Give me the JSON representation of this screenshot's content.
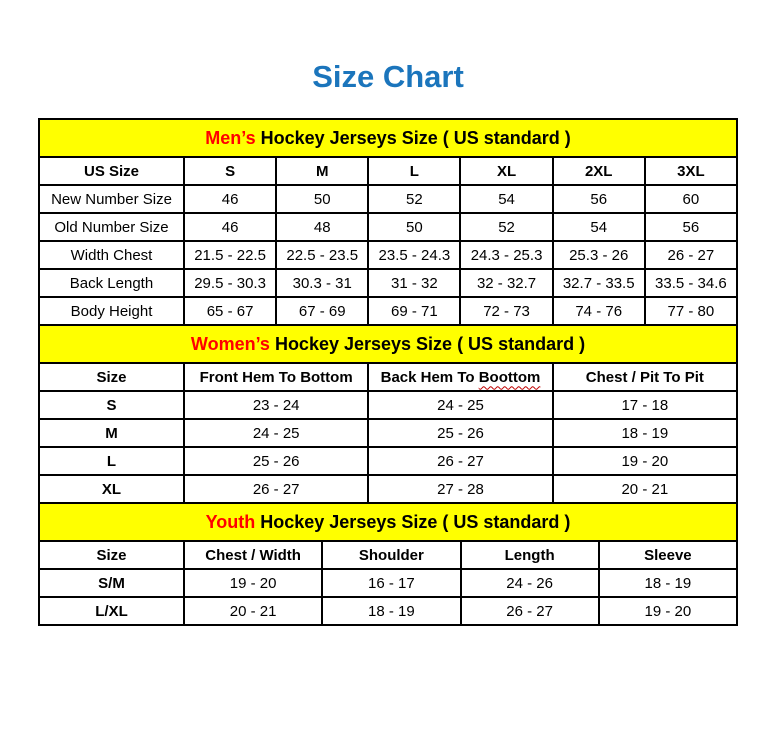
{
  "page": {
    "title": "Size Chart"
  },
  "colors": {
    "title_blue": "#1B75BC",
    "band_yellow": "#FFFF00",
    "accent_red": "#FF0000",
    "squiggle_red": "#C00000",
    "border_black": "#000000",
    "background": "#FFFFFF"
  },
  "chart_data": [
    {
      "type": "table",
      "id": "men",
      "title": "Men’s Hockey Jerseys Size ( US standard )",
      "band_highlight": "Men’s",
      "band_rest": " Hockey Jerseys Size ( US standard )",
      "columns": [
        "US Size",
        "S",
        "M",
        "L",
        "XL",
        "2XL",
        "3XL"
      ],
      "rows": [
        [
          "New Number Size",
          "46",
          "50",
          "52",
          "54",
          "56",
          "60"
        ],
        [
          "Old Number Size",
          "46",
          "48",
          "50",
          "52",
          "54",
          "56"
        ],
        [
          "Width Chest",
          "21.5 - 22.5",
          "22.5 - 23.5",
          "23.5 - 24.3",
          "24.3 - 25.3",
          "25.3 - 26",
          "26 - 27"
        ],
        [
          "Back Length",
          "29.5 - 30.3",
          "30.3 - 31",
          "31 - 32",
          "32 - 32.7",
          "32.7 - 33.5",
          "33.5 - 34.6"
        ],
        [
          "Body Height",
          "65 - 67",
          "67 - 69",
          "69 - 71",
          "72 - 73",
          "74 - 76",
          "77 - 80"
        ]
      ]
    },
    {
      "type": "table",
      "id": "women",
      "title": "Women’s Hockey Jerseys Size ( US standard )",
      "band_highlight": "Women’s",
      "band_rest": " Hockey Jerseys Size ( US standard )",
      "columns": [
        "Size",
        "Front Hem To Bottom",
        "Back Hem To Boottom",
        "Chest / Pit To Pit"
      ],
      "misspelled_header": {
        "prefix": "Back Hem To ",
        "word": "Boottom"
      },
      "rows": [
        [
          "S",
          "23 - 24",
          "24 - 25",
          "17 - 18"
        ],
        [
          "M",
          "24 - 25",
          "25 - 26",
          "18 - 19"
        ],
        [
          "L",
          "25 - 26",
          "26 - 27",
          "19 - 20"
        ],
        [
          "XL",
          "26 - 27",
          "27 - 28",
          "20 - 21"
        ]
      ]
    },
    {
      "type": "table",
      "id": "youth",
      "title": "Youth Hockey Jerseys Size ( US standard )",
      "band_highlight": "Youth",
      "band_rest": " Hockey Jerseys Size ( US standard )",
      "columns": [
        "Size",
        "Chest / Width",
        "Shoulder",
        "Length",
        "Sleeve"
      ],
      "rows": [
        [
          "S/M",
          "19 - 20",
          "16 - 17",
          "24 - 26",
          "18 - 19"
        ],
        [
          "L/XL",
          "20 - 21",
          "18 - 19",
          "26 - 27",
          "19 - 20"
        ]
      ]
    }
  ]
}
